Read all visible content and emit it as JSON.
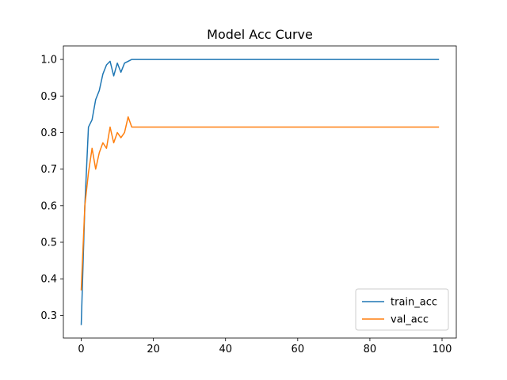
{
  "chart_data": {
    "type": "line",
    "title": "Model Acc Curve",
    "xlabel": "",
    "ylabel": "",
    "xlim": [
      -4.95,
      103.95
    ],
    "ylim": [
      0.238,
      1.037
    ],
    "xticks": [
      0,
      20,
      40,
      60,
      80,
      100
    ],
    "yticks": [
      0.3,
      0.4,
      0.5,
      0.6,
      0.7,
      0.8,
      0.9,
      1.0
    ],
    "xtick_labels": [
      "0",
      "20",
      "40",
      "60",
      "80",
      "100"
    ],
    "ytick_labels": [
      "0.3",
      "0.4",
      "0.5",
      "0.6",
      "0.7",
      "0.8",
      "0.9",
      "1.0"
    ],
    "grid": false,
    "legend_position": "bottom-right",
    "series": [
      {
        "name": "train_acc",
        "color": "#1f77b4",
        "points": [
          [
            0,
            0.275
          ],
          [
            1,
            0.6
          ],
          [
            2,
            0.815
          ],
          [
            3,
            0.835
          ],
          [
            4,
            0.89
          ],
          [
            5,
            0.915
          ],
          [
            6,
            0.96
          ],
          [
            7,
            0.985
          ],
          [
            8,
            0.995
          ],
          [
            9,
            0.955
          ],
          [
            10,
            0.99
          ],
          [
            11,
            0.965
          ],
          [
            12,
            0.99
          ],
          [
            13,
            0.995
          ],
          [
            14,
            1.0
          ],
          [
            99,
            1.0
          ]
        ]
      },
      {
        "name": "val_acc",
        "color": "#ff7f0e",
        "points": [
          [
            0,
            0.37
          ],
          [
            1,
            0.6
          ],
          [
            2,
            0.69
          ],
          [
            3,
            0.757
          ],
          [
            4,
            0.7
          ],
          [
            5,
            0.745
          ],
          [
            6,
            0.772
          ],
          [
            7,
            0.757
          ],
          [
            8,
            0.815
          ],
          [
            9,
            0.772
          ],
          [
            10,
            0.8
          ],
          [
            11,
            0.786
          ],
          [
            12,
            0.8
          ],
          [
            13,
            0.843
          ],
          [
            14,
            0.815
          ],
          [
            99,
            0.815
          ]
        ]
      }
    ]
  }
}
